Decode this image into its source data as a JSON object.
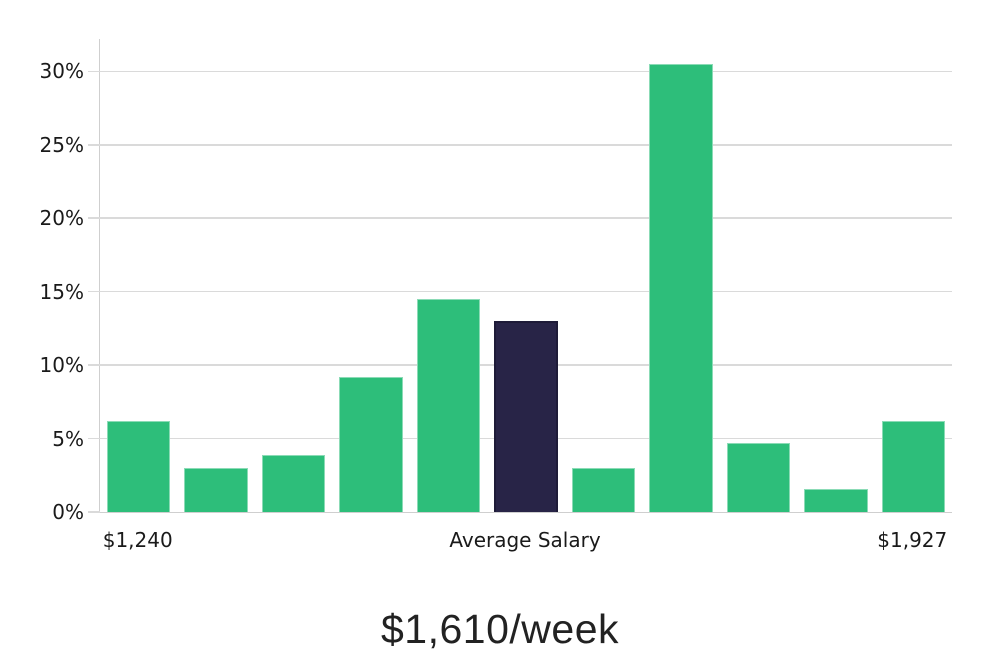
{
  "chart_data": {
    "type": "bar",
    "title": "$1,610/week",
    "values": [
      6.2,
      3.0,
      3.9,
      9.2,
      14.5,
      13.0,
      3.0,
      30.5,
      4.7,
      1.6,
      6.2
    ],
    "highlight_index": 5,
    "highlight_meaning": "Average Salary",
    "ylim": [
      0,
      32.2
    ],
    "yticks": [
      {
        "value": 0,
        "label": "0%"
      },
      {
        "value": 5,
        "label": "5%"
      },
      {
        "value": 10,
        "label": "10%"
      },
      {
        "value": 15,
        "label": "15%"
      },
      {
        "value": 20,
        "label": "20%"
      },
      {
        "value": 25,
        "label": "25%"
      },
      {
        "value": 30,
        "label": "30%"
      }
    ],
    "xticks": [
      {
        "bar": 0,
        "label": "$1,240"
      },
      {
        "bar": 5,
        "label": "Average Salary"
      },
      {
        "bar": 10,
        "label": "$1,927"
      }
    ],
    "colors": {
      "bar": "#2dbe7a",
      "highlight_bar": "#282447",
      "highlight_border": "#1e1b38",
      "grid": "#dadada"
    },
    "legend": null,
    "grid": "horizontal-only"
  }
}
